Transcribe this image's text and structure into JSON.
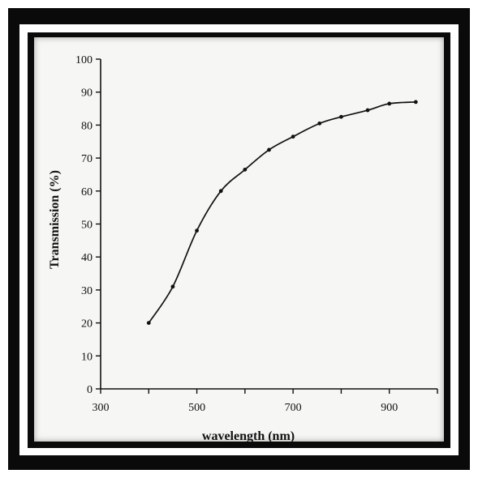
{
  "chart_data": {
    "type": "line",
    "title": "",
    "xlabel": "wavelength (nm)",
    "ylabel": "Transmission (%)",
    "xlim": [
      300,
      1000
    ],
    "ylim": [
      0,
      100
    ],
    "x_ticks": [
      300,
      500,
      700,
      900
    ],
    "x_tick_labels": [
      "300",
      "500",
      "700",
      "900"
    ],
    "x_minor_step": 100,
    "y_ticks": [
      0,
      10,
      20,
      30,
      40,
      50,
      60,
      70,
      80,
      90,
      100
    ],
    "y_tick_labels": [
      "0",
      "10",
      "20",
      "30",
      "40",
      "50",
      "60",
      "70",
      "80",
      "90",
      "100"
    ],
    "grid": false,
    "legend": "none",
    "series": [
      {
        "x": [
          400,
          450,
          500,
          550,
          600,
          650,
          700,
          755,
          800,
          855,
          900,
          955
        ],
        "y": [
          20,
          31,
          48,
          60,
          66.5,
          72.5,
          76.5,
          80.5,
          82.5,
          84.5,
          86.5,
          87
        ]
      }
    ]
  },
  "colors": {
    "line": "#111111",
    "frame": "#0a0a0a",
    "panel": "#f6f6f4"
  }
}
